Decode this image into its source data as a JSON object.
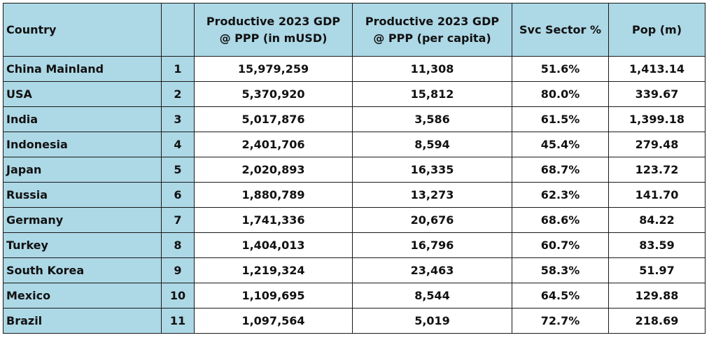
{
  "table": {
    "headers": {
      "country": "Country",
      "rank": "",
      "gdp_total_line1": "Productive 2023 GDP",
      "gdp_total_line2": "@ PPP (in mUSD)",
      "gdp_per_capita_line1": "Productive 2023 GDP",
      "gdp_per_capita_line2": "@ PPP (per capita)",
      "svc_sector": "Svc Sector %",
      "pop": "Pop (m)"
    },
    "rows": [
      {
        "country": "China Mainland",
        "rank": "1",
        "gdp_total": "15,979,259",
        "gdp_per_capita": "11,308",
        "svc_sector": "51.6%",
        "pop": "1,413.14"
      },
      {
        "country": "USA",
        "rank": "2",
        "gdp_total": "5,370,920",
        "gdp_per_capita": "15,812",
        "svc_sector": "80.0%",
        "pop": "339.67"
      },
      {
        "country": "India",
        "rank": "3",
        "gdp_total": "5,017,876",
        "gdp_per_capita": "3,586",
        "svc_sector": "61.5%",
        "pop": "1,399.18"
      },
      {
        "country": "Indonesia",
        "rank": "4",
        "gdp_total": "2,401,706",
        "gdp_per_capita": "8,594",
        "svc_sector": "45.4%",
        "pop": "279.48"
      },
      {
        "country": "Japan",
        "rank": "5",
        "gdp_total": "2,020,893",
        "gdp_per_capita": "16,335",
        "svc_sector": "68.7%",
        "pop": "123.72"
      },
      {
        "country": "Russia",
        "rank": "6",
        "gdp_total": "1,880,789",
        "gdp_per_capita": "13,273",
        "svc_sector": "62.3%",
        "pop": "141.70"
      },
      {
        "country": "Germany",
        "rank": "7",
        "gdp_total": "1,741,336",
        "gdp_per_capita": "20,676",
        "svc_sector": "68.6%",
        "pop": "84.22"
      },
      {
        "country": "Turkey",
        "rank": "8",
        "gdp_total": "1,404,013",
        "gdp_per_capita": "16,796",
        "svc_sector": "60.7%",
        "pop": "83.59"
      },
      {
        "country": "South Korea",
        "rank": "9",
        "gdp_total": "1,219,324",
        "gdp_per_capita": "23,463",
        "svc_sector": "58.3%",
        "pop": "51.97"
      },
      {
        "country": "Mexico",
        "rank": "10",
        "gdp_total": "1,109,695",
        "gdp_per_capita": "8,544",
        "svc_sector": "64.5%",
        "pop": "129.88"
      },
      {
        "country": "Brazil",
        "rank": "11",
        "gdp_total": "1,097,564",
        "gdp_per_capita": "5,019",
        "svc_sector": "72.7%",
        "pop": "218.69"
      }
    ]
  },
  "colors": {
    "header_fill": "#add8e6",
    "label_fill": "#add8e6",
    "body_fill": "#ffffff",
    "border": "#1a1a1a"
  }
}
